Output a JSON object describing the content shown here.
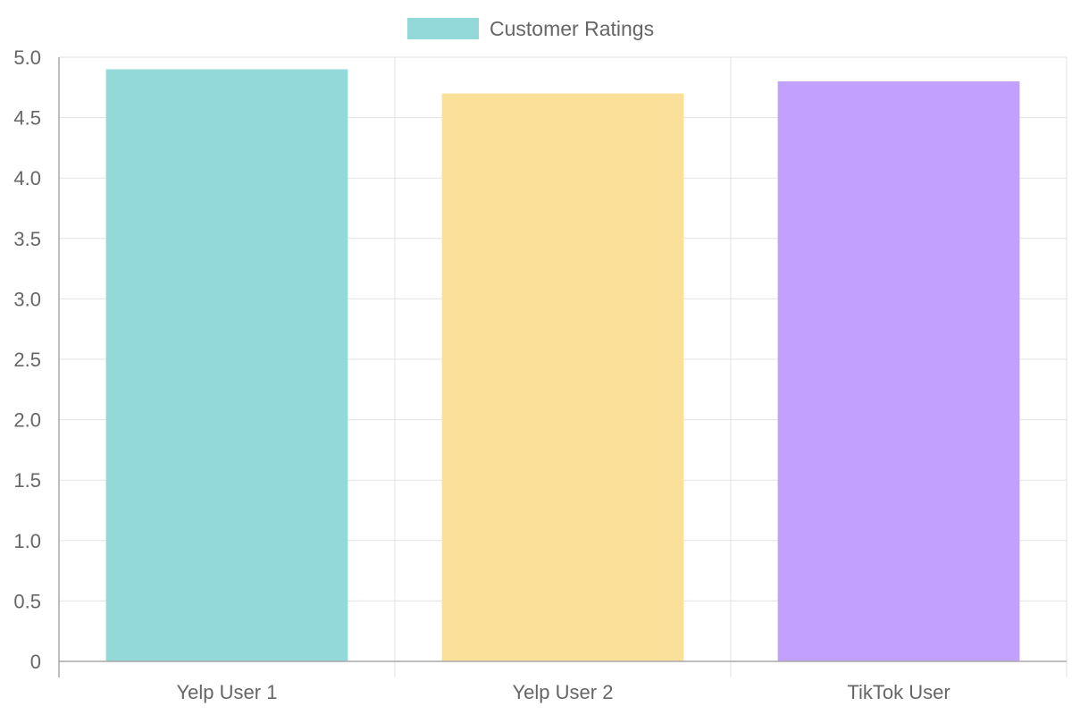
{
  "chart_data": {
    "type": "bar",
    "categories": [
      "Yelp User 1",
      "Yelp User 2",
      "TikTok User"
    ],
    "series": [
      {
        "name": "Customer Ratings",
        "values": [
          4.9,
          4.7,
          4.8
        ],
        "colors": [
          "#94d9d9",
          "#fbe09a",
          "#c2a1fd"
        ]
      }
    ],
    "y_ticks": [
      "0",
      "0.5",
      "1.0",
      "1.5",
      "2.0",
      "2.5",
      "3.0",
      "3.5",
      "4.0",
      "4.5",
      "5.0"
    ],
    "ylim": [
      0,
      5
    ],
    "grid": true,
    "legend_position": "top-center",
    "legend_swatch_color": "#94d9d9"
  }
}
